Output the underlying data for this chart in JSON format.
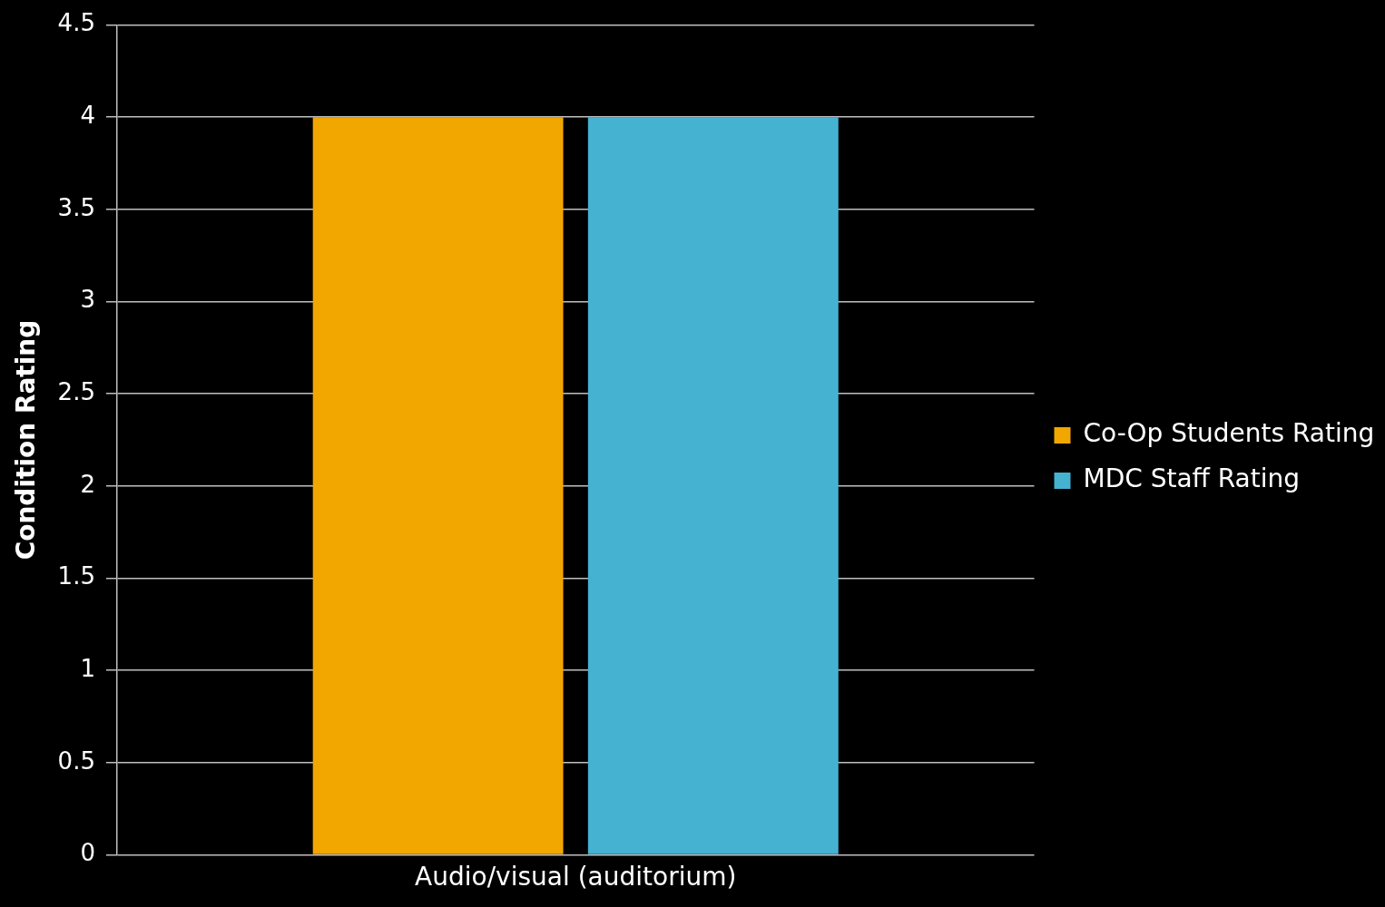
{
  "chart_data": {
    "type": "bar",
    "ylabel": "Condition Rating",
    "categories": [
      "Audio/visual (auditorium)"
    ],
    "series": [
      {
        "name": "Co-Op Students Rating",
        "color": "#f2a600",
        "values": [
          4
        ]
      },
      {
        "name": "MDC Staff Rating",
        "color": "#45b2d2",
        "values": [
          4
        ]
      }
    ],
    "ylim": [
      0,
      4.5
    ],
    "yticks": [
      0,
      0.5,
      1,
      1.5,
      2,
      2.5,
      3,
      3.5,
      4,
      4.5
    ],
    "grid": "y",
    "legend": "right"
  }
}
